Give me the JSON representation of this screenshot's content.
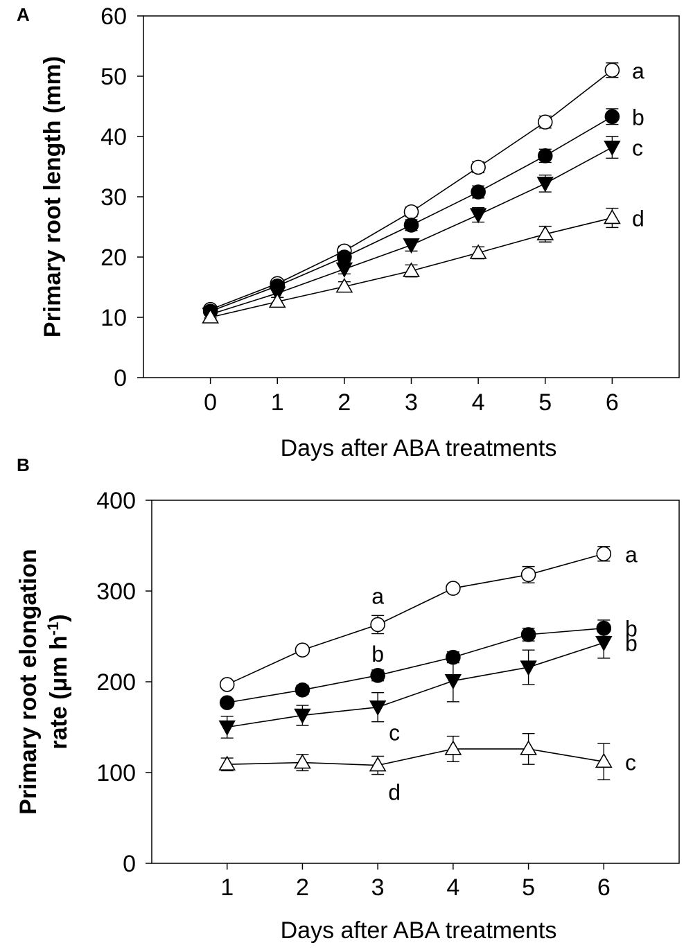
{
  "chart_data": [
    {
      "panel": "A",
      "type": "line",
      "xlabel": "Days after ABA treatments",
      "ylabel": "Primary root length (mm)",
      "xlim": [
        -1,
        7
      ],
      "ylim": [
        0,
        60
      ],
      "xticks": [
        0,
        1,
        2,
        3,
        4,
        5,
        6
      ],
      "yticks": [
        0,
        10,
        20,
        30,
        40,
        50,
        60
      ],
      "x": [
        0,
        1,
        2,
        3,
        4,
        5,
        6
      ],
      "series": [
        {
          "marker": "circle-open",
          "values": [
            11.3,
            15.6,
            21.0,
            27.5,
            34.9,
            42.4,
            51.0
          ],
          "errors": [
            0.6,
            0.6,
            0.8,
            0.8,
            0.9,
            1.0,
            1.2
          ],
          "letter": "a"
        },
        {
          "marker": "circle-filled",
          "values": [
            11.0,
            15.2,
            20.0,
            25.3,
            30.8,
            36.8,
            43.3
          ],
          "errors": [
            0.6,
            0.6,
            0.8,
            0.9,
            1.0,
            1.1,
            1.3
          ],
          "letter": "b"
        },
        {
          "marker": "triangle-down-filled",
          "values": [
            10.5,
            14.0,
            18.0,
            22.0,
            27.0,
            32.2,
            38.2
          ],
          "errors": [
            0.6,
            0.7,
            0.8,
            1.0,
            1.2,
            1.4,
            1.8
          ],
          "letter": "c"
        },
        {
          "marker": "triangle-up-open",
          "values": [
            10.0,
            12.6,
            15.1,
            17.7,
            20.7,
            23.8,
            26.5
          ],
          "errors": [
            0.6,
            0.7,
            0.8,
            1.0,
            1.0,
            1.3,
            1.6
          ],
          "letter": "d"
        }
      ]
    },
    {
      "panel": "B",
      "type": "line",
      "xlabel": "Days after ABA treatments",
      "ylabel_line1": "Primary root elongation",
      "ylabel_line2": "rate (μm h",
      "ylabel_sup": "-1",
      "ylabel_close": ")",
      "xlim": [
        0,
        7
      ],
      "ylim": [
        0,
        400
      ],
      "xticks": [
        1,
        2,
        3,
        4,
        5,
        6
      ],
      "yticks": [
        0,
        100,
        200,
        300,
        400
      ],
      "x": [
        1,
        2,
        3,
        4,
        5,
        6
      ],
      "series": [
        {
          "marker": "circle-open",
          "values": [
            197,
            235,
            263,
            303,
            318,
            341
          ],
          "errors": [
            4,
            4,
            10,
            4,
            9,
            8
          ],
          "letter": "a"
        },
        {
          "marker": "circle-filled",
          "values": [
            177,
            191,
            207,
            227,
            252,
            259
          ],
          "errors": [
            4,
            5,
            6,
            6,
            7,
            9
          ],
          "letter": "b"
        },
        {
          "marker": "triangle-down-filled",
          "values": [
            150,
            163,
            172,
            201,
            216,
            243
          ],
          "errors": [
            12,
            11,
            16,
            23,
            19,
            17
          ],
          "letter": "b"
        },
        {
          "marker": "triangle-up-open",
          "values": [
            109,
            111,
            108,
            126,
            126,
            112
          ],
          "errors": [
            7,
            9,
            10,
            14,
            17,
            20
          ],
          "letter": "c"
        }
      ],
      "day3_letters": [
        "a",
        "b",
        "c",
        "d"
      ]
    }
  ]
}
